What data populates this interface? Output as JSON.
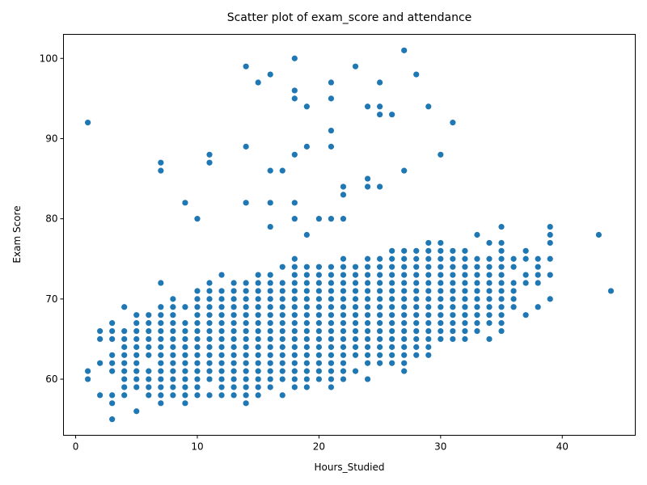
{
  "chart_data": {
    "type": "scatter",
    "title": "Scatter plot of exam_score and attendance",
    "xlabel": "Hours_Studied",
    "ylabel": "Exam Score",
    "xlim": [
      -1,
      46
    ],
    "ylim": [
      53,
      103
    ],
    "x_ticks": [
      0,
      10,
      20,
      30,
      40
    ],
    "y_ticks": [
      60,
      70,
      80,
      90,
      100
    ],
    "x_tick_labels": [
      "0",
      "10",
      "20",
      "30",
      "40"
    ],
    "y_tick_labels": [
      "60",
      "70",
      "80",
      "90",
      "100"
    ],
    "grid": false,
    "legend": "none",
    "point_color": "#1f77b4",
    "columns": [
      {
        "x": 1,
        "y": [
          60,
          61
        ]
      },
      {
        "x": 2,
        "y": [
          58,
          62,
          65,
          66
        ]
      },
      {
        "x": 3,
        "y": [
          55,
          57,
          58,
          61,
          62,
          63,
          65,
          66,
          67
        ]
      },
      {
        "x": 4,
        "y": [
          58,
          59,
          60,
          61,
          62,
          63,
          64,
          65,
          66,
          69
        ]
      },
      {
        "x": 5,
        "y": [
          56,
          59,
          60,
          61,
          62,
          63,
          64,
          65,
          66,
          67,
          68
        ]
      },
      {
        "x": 6,
        "y": [
          58,
          59,
          60,
          61,
          63,
          64,
          65,
          66,
          67,
          68
        ]
      },
      {
        "x": 7,
        "y": [
          57,
          58,
          59,
          60,
          61,
          62,
          63,
          64,
          65,
          66,
          67,
          68,
          69
        ]
      },
      {
        "x": 8,
        "y": [
          58,
          59,
          60,
          61,
          62,
          63,
          64,
          65,
          66,
          67,
          68,
          69,
          70
        ]
      },
      {
        "x": 9,
        "y": [
          57,
          58,
          59,
          60,
          61,
          62,
          63,
          64,
          65,
          66,
          67,
          69
        ]
      },
      {
        "x": 10,
        "y": [
          58,
          59,
          60,
          61,
          62,
          63,
          64,
          65,
          66,
          67,
          68,
          69,
          70,
          71
        ]
      },
      {
        "x": 11,
        "y": [
          58,
          60,
          61,
          62,
          63,
          64,
          65,
          66,
          67,
          68,
          69,
          70,
          71,
          72
        ]
      },
      {
        "x": 12,
        "y": [
          58,
          59,
          60,
          61,
          62,
          63,
          64,
          65,
          66,
          67,
          68,
          69,
          70,
          71,
          73
        ]
      },
      {
        "x": 13,
        "y": [
          58,
          59,
          60,
          61,
          62,
          63,
          64,
          65,
          66,
          67,
          68,
          69,
          70,
          71,
          72
        ]
      },
      {
        "x": 14,
        "y": [
          57,
          58,
          59,
          60,
          61,
          62,
          63,
          64,
          65,
          66,
          67,
          68,
          69,
          70,
          71,
          72
        ]
      },
      {
        "x": 15,
        "y": [
          58,
          59,
          60,
          61,
          62,
          63,
          64,
          65,
          66,
          67,
          68,
          69,
          70,
          71,
          72,
          73
        ]
      },
      {
        "x": 16,
        "y": [
          59,
          60,
          61,
          62,
          63,
          64,
          65,
          66,
          67,
          68,
          69,
          70,
          71,
          72,
          73
        ]
      },
      {
        "x": 17,
        "y": [
          58,
          60,
          61,
          62,
          63,
          64,
          65,
          66,
          67,
          68,
          69,
          70,
          71,
          72,
          74
        ]
      },
      {
        "x": 18,
        "y": [
          59,
          60,
          61,
          62,
          63,
          64,
          65,
          66,
          67,
          68,
          69,
          70,
          71,
          72,
          73,
          74,
          75
        ]
      },
      {
        "x": 19,
        "y": [
          59,
          60,
          61,
          62,
          63,
          64,
          65,
          66,
          67,
          68,
          69,
          70,
          71,
          72,
          73,
          74
        ]
      },
      {
        "x": 20,
        "y": [
          60,
          61,
          62,
          63,
          64,
          65,
          66,
          67,
          68,
          69,
          70,
          71,
          72,
          73,
          74
        ]
      },
      {
        "x": 21,
        "y": [
          59,
          60,
          61,
          62,
          63,
          64,
          65,
          66,
          67,
          68,
          69,
          70,
          71,
          72,
          73,
          74
        ]
      },
      {
        "x": 22,
        "y": [
          60,
          61,
          62,
          63,
          64,
          65,
          66,
          67,
          68,
          69,
          70,
          71,
          72,
          73,
          74,
          75
        ]
      },
      {
        "x": 23,
        "y": [
          61,
          63,
          64,
          65,
          66,
          67,
          68,
          69,
          70,
          71,
          72,
          73,
          74
        ]
      },
      {
        "x": 24,
        "y": [
          60,
          62,
          63,
          64,
          65,
          66,
          67,
          68,
          69,
          70,
          71,
          72,
          73,
          74,
          75
        ]
      },
      {
        "x": 25,
        "y": [
          62,
          63,
          64,
          65,
          66,
          67,
          68,
          69,
          70,
          71,
          72,
          73,
          74,
          75
        ]
      },
      {
        "x": 26,
        "y": [
          62,
          63,
          64,
          65,
          66,
          67,
          68,
          69,
          70,
          71,
          72,
          73,
          74,
          75,
          76
        ]
      },
      {
        "x": 27,
        "y": [
          61,
          62,
          63,
          64,
          65,
          66,
          67,
          68,
          69,
          70,
          71,
          72,
          73,
          74,
          75,
          76
        ]
      },
      {
        "x": 28,
        "y": [
          63,
          64,
          65,
          66,
          67,
          68,
          69,
          70,
          71,
          72,
          73,
          74,
          75,
          76
        ]
      },
      {
        "x": 29,
        "y": [
          63,
          64,
          65,
          66,
          67,
          68,
          69,
          70,
          71,
          72,
          73,
          74,
          75,
          76,
          77
        ]
      },
      {
        "x": 30,
        "y": [
          65,
          66,
          67,
          68,
          69,
          70,
          71,
          72,
          73,
          74,
          75,
          76,
          77
        ]
      },
      {
        "x": 31,
        "y": [
          65,
          66,
          67,
          68,
          69,
          70,
          71,
          72,
          73,
          74,
          75,
          76
        ]
      },
      {
        "x": 32,
        "y": [
          65,
          66,
          67,
          68,
          69,
          70,
          71,
          72,
          73,
          74,
          75,
          76
        ]
      },
      {
        "x": 33,
        "y": [
          66,
          67,
          68,
          69,
          70,
          71,
          72,
          73,
          74,
          75,
          78
        ]
      },
      {
        "x": 34,
        "y": [
          65,
          67,
          68,
          69,
          70,
          71,
          72,
          73,
          74,
          75,
          77
        ]
      },
      {
        "x": 35,
        "y": [
          66,
          67,
          68,
          69,
          70,
          71,
          72,
          73,
          74,
          75,
          76,
          77,
          79
        ]
      },
      {
        "x": 36,
        "y": [
          69,
          70,
          71,
          72,
          74,
          75
        ]
      },
      {
        "x": 37,
        "y": [
          68,
          72,
          73,
          75,
          76
        ]
      },
      {
        "x": 38,
        "y": [
          69,
          72,
          73,
          74,
          75
        ]
      },
      {
        "x": 39,
        "y": [
          70,
          73,
          75,
          77,
          78,
          79
        ]
      }
    ],
    "points": [
      {
        "x": 1,
        "y": 92
      },
      {
        "x": 7,
        "y": 86
      },
      {
        "x": 7,
        "y": 87
      },
      {
        "x": 7,
        "y": 72
      },
      {
        "x": 9,
        "y": 82
      },
      {
        "x": 10,
        "y": 80
      },
      {
        "x": 11,
        "y": 87
      },
      {
        "x": 11,
        "y": 88
      },
      {
        "x": 14,
        "y": 99
      },
      {
        "x": 14,
        "y": 89
      },
      {
        "x": 14,
        "y": 82
      },
      {
        "x": 15,
        "y": 97
      },
      {
        "x": 16,
        "y": 98
      },
      {
        "x": 16,
        "y": 86
      },
      {
        "x": 16,
        "y": 82
      },
      {
        "x": 16,
        "y": 79
      },
      {
        "x": 17,
        "y": 86
      },
      {
        "x": 18,
        "y": 100
      },
      {
        "x": 18,
        "y": 96
      },
      {
        "x": 18,
        "y": 95
      },
      {
        "x": 18,
        "y": 88
      },
      {
        "x": 18,
        "y": 82
      },
      {
        "x": 18,
        "y": 80
      },
      {
        "x": 19,
        "y": 94
      },
      {
        "x": 19,
        "y": 89
      },
      {
        "x": 19,
        "y": 78
      },
      {
        "x": 20,
        "y": 80
      },
      {
        "x": 21,
        "y": 97
      },
      {
        "x": 21,
        "y": 95
      },
      {
        "x": 21,
        "y": 91
      },
      {
        "x": 21,
        "y": 89
      },
      {
        "x": 21,
        "y": 80
      },
      {
        "x": 22,
        "y": 84
      },
      {
        "x": 22,
        "y": 83
      },
      {
        "x": 22,
        "y": 80
      },
      {
        "x": 23,
        "y": 99
      },
      {
        "x": 24,
        "y": 94
      },
      {
        "x": 24,
        "y": 85
      },
      {
        "x": 24,
        "y": 84
      },
      {
        "x": 25,
        "y": 97
      },
      {
        "x": 25,
        "y": 94
      },
      {
        "x": 25,
        "y": 93
      },
      {
        "x": 25,
        "y": 84
      },
      {
        "x": 26,
        "y": 93
      },
      {
        "x": 27,
        "y": 101
      },
      {
        "x": 27,
        "y": 86
      },
      {
        "x": 28,
        "y": 98
      },
      {
        "x": 29,
        "y": 94
      },
      {
        "x": 30,
        "y": 88
      },
      {
        "x": 31,
        "y": 92
      },
      {
        "x": 43,
        "y": 78
      },
      {
        "x": 44,
        "y": 71
      }
    ]
  }
}
